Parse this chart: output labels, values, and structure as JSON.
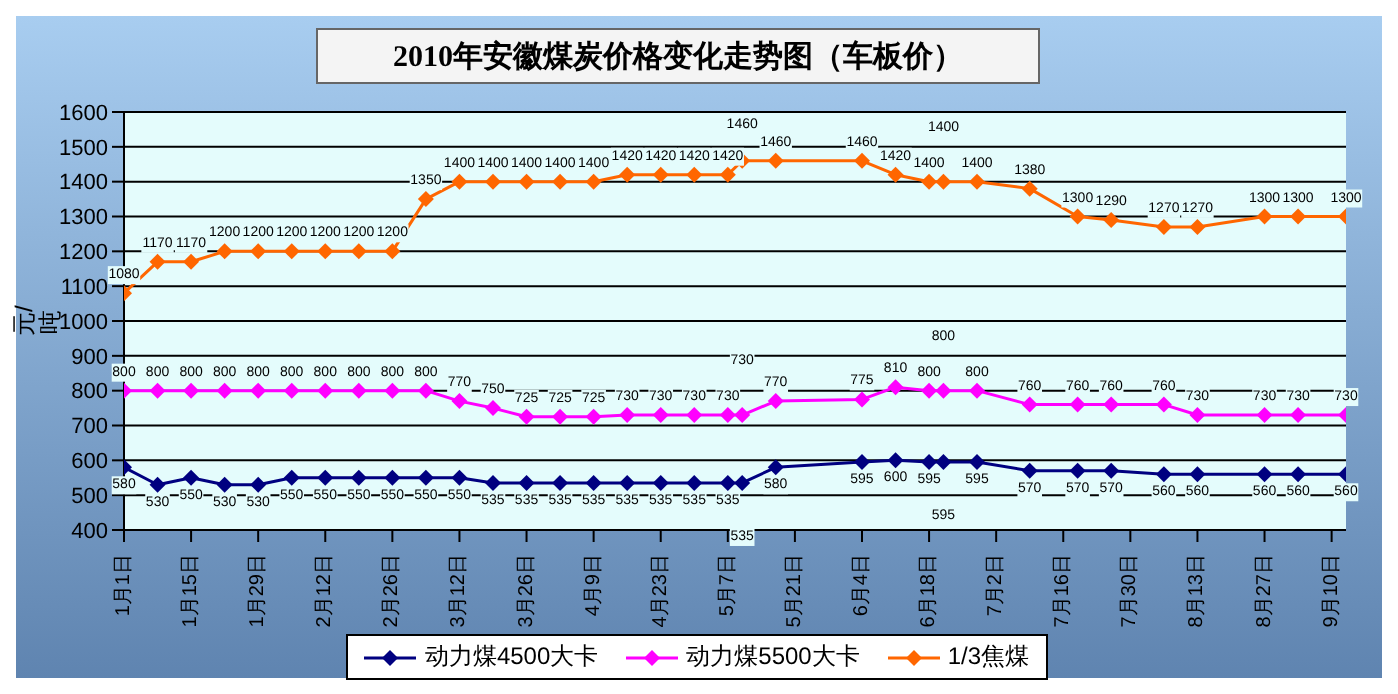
{
  "chart_data": {
    "type": "line",
    "title": "2010年安徽煤炭价格变化走势图（车板价）",
    "ylabel": "元/吨",
    "x": [
      "2010-01-01",
      "2010-01-08",
      "2010-01-15",
      "2010-01-22",
      "2010-01-29",
      "2010-02-05",
      "2010-02-12",
      "2010-02-19",
      "2010-02-26",
      "2010-03-05",
      "2010-03-12",
      "2010-03-19",
      "2010-03-26",
      "2010-04-02",
      "2010-04-09",
      "2010-04-16",
      "2010-04-23",
      "2010-04-30",
      "2010-05-07",
      "2010-05-10",
      "2010-05-17",
      "2010-06-04",
      "2010-06-11",
      "2010-06-18",
      "2010-06-21",
      "2010-06-28",
      "2010-07-09",
      "2010-07-19",
      "2010-07-26",
      "2010-08-06",
      "2010-08-13",
      "2010-08-27",
      "2010-09-03",
      "2010-09-13"
    ],
    "series": [
      {
        "name": "动力煤4500大卡",
        "color": "#000080",
        "values": [
          580,
          530,
          550,
          530,
          530,
          550,
          550,
          550,
          550,
          550,
          550,
          535,
          535,
          535,
          535,
          535,
          535,
          535,
          535,
          535,
          580,
          595,
          600,
          595,
          595,
          595,
          570,
          570,
          570,
          560,
          560,
          560,
          560,
          560
        ]
      },
      {
        "name": "动力煤5500大卡",
        "color": "#ff00ff",
        "values": [
          800,
          800,
          800,
          800,
          800,
          800,
          800,
          800,
          800,
          800,
          770,
          750,
          725,
          725,
          725,
          730,
          730,
          730,
          730,
          730,
          770,
          775,
          810,
          800,
          800,
          800,
          760,
          760,
          760,
          760,
          730,
          730,
          730,
          730
        ]
      },
      {
        "name": "1/3焦煤",
        "color": "#ff6600",
        "values": [
          1080,
          1170,
          1170,
          1200,
          1200,
          1200,
          1200,
          1200,
          1200,
          1350,
          1400,
          1400,
          1400,
          1400,
          1400,
          1420,
          1420,
          1420,
          1420,
          1460,
          1460,
          1460,
          1420,
          1400,
          1400,
          1400,
          1380,
          1300,
          1290,
          1270,
          1270,
          1300,
          1300,
          1300
        ]
      }
    ],
    "xlim": [
      "2010-01-01",
      "2010-09-13"
    ],
    "xticks": [
      {
        "value": "2010-01-01",
        "label": "1月1日"
      },
      {
        "value": "2010-01-15",
        "label": "1月15日"
      },
      {
        "value": "2010-01-29",
        "label": "1月29日"
      },
      {
        "value": "2010-02-12",
        "label": "2月12日"
      },
      {
        "value": "2010-02-26",
        "label": "2月26日"
      },
      {
        "value": "2010-03-12",
        "label": "3月12日"
      },
      {
        "value": "2010-03-26",
        "label": "3月26日"
      },
      {
        "value": "2010-04-09",
        "label": "4月9日"
      },
      {
        "value": "2010-04-23",
        "label": "4月23日"
      },
      {
        "value": "2010-05-07",
        "label": "5月7日"
      },
      {
        "value": "2010-05-21",
        "label": "5月21日"
      },
      {
        "value": "2010-06-04",
        "label": "6月4日"
      },
      {
        "value": "2010-06-18",
        "label": "6月18日"
      },
      {
        "value": "2010-07-02",
        "label": "7月2日"
      },
      {
        "value": "2010-07-16",
        "label": "7月16日"
      },
      {
        "value": "2010-07-30",
        "label": "7月30日"
      },
      {
        "value": "2010-08-13",
        "label": "8月13日"
      },
      {
        "value": "2010-08-27",
        "label": "8月27日"
      },
      {
        "value": "2010-09-10",
        "label": "9月10日"
      }
    ],
    "ylim": [
      400,
      1600
    ],
    "yticks": [
      400,
      500,
      600,
      700,
      800,
      900,
      1000,
      1100,
      1200,
      1300,
      1400,
      1500,
      1600
    ],
    "grid": "y",
    "legend": "bottom",
    "marker": "diamond",
    "line_style": "solid",
    "data_labels": true
  }
}
